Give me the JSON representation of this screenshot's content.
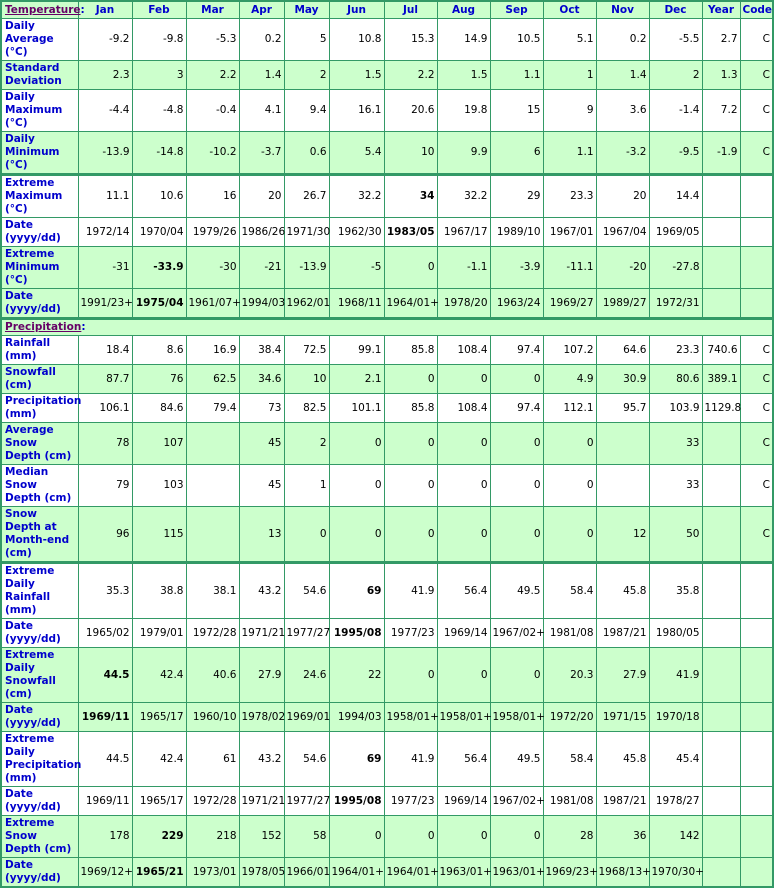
{
  "colors": {
    "accent": "#0000cc",
    "row_alt": "#ccffcc",
    "border": "#339966",
    "section": "#660066"
  },
  "columns": [
    "Jan",
    "Feb",
    "Mar",
    "Apr",
    "May",
    "Jun",
    "Jul",
    "Aug",
    "Sep",
    "Oct",
    "Nov",
    "Dec",
    "Year",
    "Code"
  ],
  "sections": [
    {
      "title": "Temperature",
      "rows": [
        {
          "label": "Daily Average (°C)",
          "values": [
            "-9.2",
            "-9.8",
            "-5.3",
            "0.2",
            "5",
            "10.8",
            "15.3",
            "14.9",
            "10.5",
            "5.1",
            "0.2",
            "-5.5",
            "2.7",
            "C"
          ],
          "bold": []
        },
        {
          "label": "Standard Deviation",
          "values": [
            "2.3",
            "3",
            "2.2",
            "1.4",
            "2",
            "1.5",
            "2.2",
            "1.5",
            "1.1",
            "1",
            "1.4",
            "2",
            "1.3",
            "C"
          ],
          "bold": []
        },
        {
          "label": "Daily Maximum (°C)",
          "values": [
            "-4.4",
            "-4.8",
            "-0.4",
            "4.1",
            "9.4",
            "16.1",
            "20.6",
            "19.8",
            "15",
            "9",
            "3.6",
            "-1.4",
            "7.2",
            "C"
          ],
          "bold": []
        },
        {
          "label": "Daily Minimum (°C)",
          "values": [
            "-13.9",
            "-14.8",
            "-10.2",
            "-3.7",
            "0.6",
            "5.4",
            "10",
            "9.9",
            "6",
            "1.1",
            "-3.2",
            "-9.5",
            "-1.9",
            "C"
          ],
          "bold": []
        },
        {
          "label": "Extreme Maximum (°C)",
          "values": [
            "11.1",
            "10.6",
            "16",
            "20",
            "26.7",
            "32.2",
            "34",
            "32.2",
            "29",
            "23.3",
            "20",
            "14.4",
            "",
            ""
          ],
          "bold": [
            6
          ]
        },
        {
          "label": "Date (yyyy/dd)",
          "values": [
            "1972/14",
            "1970/04",
            "1979/26",
            "1986/26",
            "1971/30",
            "1962/30",
            "1983/05",
            "1967/17",
            "1989/10",
            "1967/01",
            "1967/04",
            "1969/05",
            "",
            ""
          ],
          "bold": [
            6
          ]
        },
        {
          "label": "Extreme Minimum (°C)",
          "values": [
            "-31",
            "-33.9",
            "-30",
            "-21",
            "-13.9",
            "-5",
            "0",
            "-1.1",
            "-3.9",
            "-11.1",
            "-20",
            "-27.8",
            "",
            ""
          ],
          "bold": [
            1
          ]
        },
        {
          "label": "Date (yyyy/dd)",
          "values": [
            "1991/23+",
            "1975/04",
            "1961/07+",
            "1994/03",
            "1962/01",
            "1968/11",
            "1964/01+",
            "1978/20",
            "1963/24",
            "1969/27",
            "1989/27",
            "1972/31",
            "",
            ""
          ],
          "bold": [
            1
          ]
        }
      ]
    },
    {
      "title": "Precipitation",
      "rows": [
        {
          "label": "Rainfall (mm)",
          "values": [
            "18.4",
            "8.6",
            "16.9",
            "38.4",
            "72.5",
            "99.1",
            "85.8",
            "108.4",
            "97.4",
            "107.2",
            "64.6",
            "23.3",
            "740.6",
            "C"
          ],
          "bold": []
        },
        {
          "label": "Snowfall (cm)",
          "values": [
            "87.7",
            "76",
            "62.5",
            "34.6",
            "10",
            "2.1",
            "0",
            "0",
            "0",
            "4.9",
            "30.9",
            "80.6",
            "389.1",
            "C"
          ],
          "bold": []
        },
        {
          "label": "Precipitation (mm)",
          "values": [
            "106.1",
            "84.6",
            "79.4",
            "73",
            "82.5",
            "101.1",
            "85.8",
            "108.4",
            "97.4",
            "112.1",
            "95.7",
            "103.9",
            "1129.8",
            "C"
          ],
          "bold": []
        },
        {
          "label": "Average Snow Depth (cm)",
          "values": [
            "78",
            "107",
            "",
            "45",
            "2",
            "0",
            "0",
            "0",
            "0",
            "0",
            "",
            "33",
            "",
            "C"
          ],
          "bold": []
        },
        {
          "label": "Median Snow Depth (cm)",
          "values": [
            "79",
            "103",
            "",
            "45",
            "1",
            "0",
            "0",
            "0",
            "0",
            "0",
            "",
            "33",
            "",
            "C"
          ],
          "bold": []
        },
        {
          "label": "Snow Depth at Month-end (cm)",
          "values": [
            "96",
            "115",
            "",
            "13",
            "0",
            "0",
            "0",
            "0",
            "0",
            "0",
            "12",
            "50",
            "",
            "C"
          ],
          "bold": []
        },
        {
          "label": "Extreme Daily Rainfall (mm)",
          "values": [
            "35.3",
            "38.8",
            "38.1",
            "43.2",
            "54.6",
            "69",
            "41.9",
            "56.4",
            "49.5",
            "58.4",
            "45.8",
            "35.8",
            "",
            ""
          ],
          "bold": [
            5
          ]
        },
        {
          "label": "Date (yyyy/dd)",
          "values": [
            "1965/02",
            "1979/01",
            "1972/28",
            "1971/21",
            "1977/27",
            "1995/08",
            "1977/23",
            "1969/14",
            "1967/02+",
            "1981/08",
            "1987/21",
            "1980/05",
            "",
            ""
          ],
          "bold": [
            5
          ]
        },
        {
          "label": "Extreme Daily Snowfall (cm)",
          "values": [
            "44.5",
            "42.4",
            "40.6",
            "27.9",
            "24.6",
            "22",
            "0",
            "0",
            "0",
            "20.3",
            "27.9",
            "41.9",
            "",
            ""
          ],
          "bold": [
            0
          ]
        },
        {
          "label": "Date (yyyy/dd)",
          "values": [
            "1969/11",
            "1965/17",
            "1960/10",
            "1978/02",
            "1969/01",
            "1994/03",
            "1958/01+",
            "1958/01+",
            "1958/01+",
            "1972/20",
            "1971/15",
            "1970/18",
            "",
            ""
          ],
          "bold": [
            0
          ]
        },
        {
          "label": "Extreme Daily Precipitation (mm)",
          "values": [
            "44.5",
            "42.4",
            "61",
            "43.2",
            "54.6",
            "69",
            "41.9",
            "56.4",
            "49.5",
            "58.4",
            "45.8",
            "45.4",
            "",
            ""
          ],
          "bold": [
            5
          ]
        },
        {
          "label": "Date (yyyy/dd)",
          "values": [
            "1969/11",
            "1965/17",
            "1972/28",
            "1971/21",
            "1977/27",
            "1995/08",
            "1977/23",
            "1969/14",
            "1967/02+",
            "1981/08",
            "1987/21",
            "1978/27",
            "",
            ""
          ],
          "bold": [
            5
          ]
        },
        {
          "label": "Extreme Snow Depth (cm)",
          "values": [
            "178",
            "229",
            "218",
            "152",
            "58",
            "0",
            "0",
            "0",
            "0",
            "28",
            "36",
            "142",
            "",
            ""
          ],
          "bold": [
            1
          ]
        },
        {
          "label": "Date (yyyy/dd)",
          "values": [
            "1969/12+",
            "1965/21",
            "1973/01",
            "1978/05",
            "1966/01",
            "1964/01+",
            "1964/01+",
            "1963/01+",
            "1963/01+",
            "1969/23+",
            "1968/13+",
            "1970/30+",
            "",
            ""
          ],
          "bold": [
            1
          ]
        }
      ]
    }
  ]
}
